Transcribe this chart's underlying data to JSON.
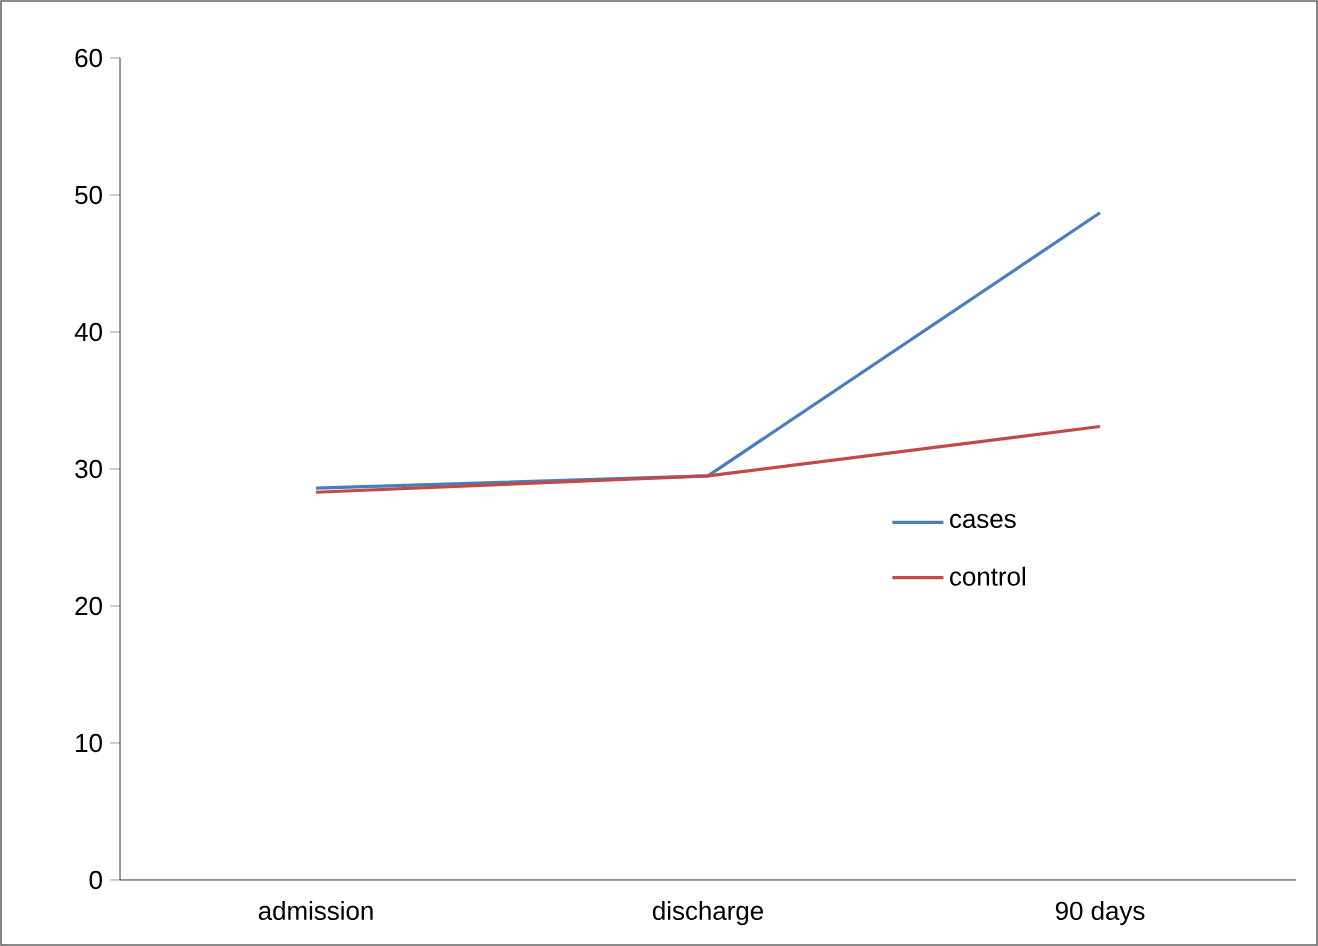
{
  "chart_data": {
    "type": "line",
    "categories": [
      "admission",
      "discharge",
      "90 days"
    ],
    "series": [
      {
        "name": "cases",
        "color": "#4a7ebb",
        "values": [
          28.6,
          29.5,
          48.7
        ]
      },
      {
        "name": "control",
        "color": "#be4b48",
        "values": [
          28.3,
          29.5,
          33.1
        ]
      }
    ],
    "ylim": [
      0,
      60
    ],
    "yticks": [
      0,
      10,
      20,
      30,
      40,
      50,
      60
    ],
    "grid": false,
    "legend": "right",
    "marker": "none",
    "line_style": "solid"
  }
}
